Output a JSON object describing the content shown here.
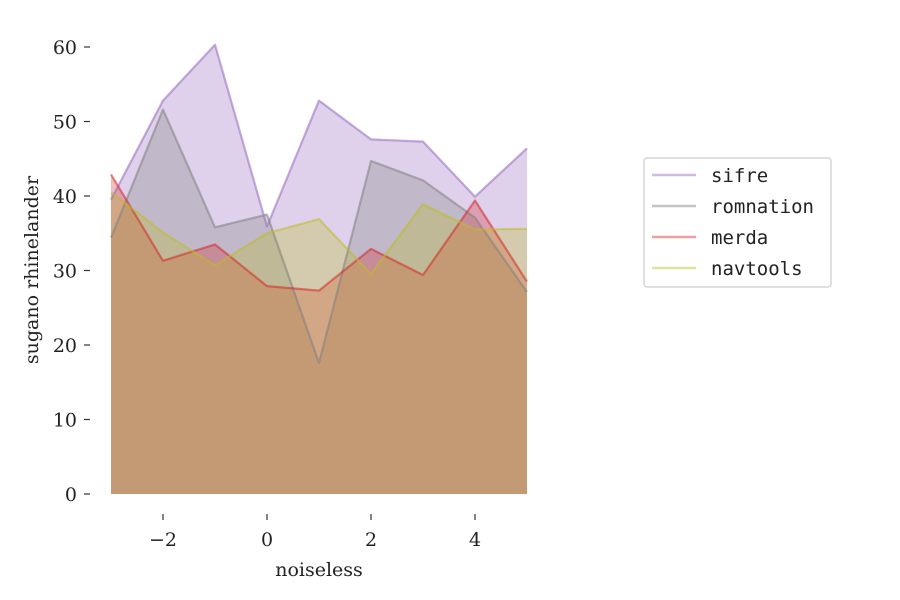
{
  "chart_data": {
    "type": "area",
    "xlabel": "noiseless",
    "ylabel": "sugano rhinelander",
    "xlim": [
      -3,
      5
    ],
    "ylim": [
      0,
      60
    ],
    "x": [
      -3,
      -2,
      -1,
      0,
      1,
      2,
      3,
      4,
      5
    ],
    "x_ticks": [
      -2,
      0,
      2,
      4
    ],
    "x_tick_labels": [
      "−2",
      "0",
      "2",
      "4"
    ],
    "y_ticks": [
      0,
      10,
      20,
      30,
      40,
      50,
      60
    ],
    "y_tick_labels": [
      "0",
      "10",
      "20",
      "30",
      "40",
      "50",
      "60"
    ],
    "grid": false,
    "legend_position": "right",
    "stacked": false,
    "series": [
      {
        "name": "sifre",
        "color": "#9467bd",
        "values": [
          39.5,
          52.8,
          60.3,
          35.9,
          52.8,
          47.6,
          47.3,
          39.9,
          46.4
        ]
      },
      {
        "name": "romnation",
        "color": "#7f7f7f",
        "values": [
          34.4,
          51.6,
          35.8,
          37.5,
          17.6,
          44.7,
          42.1,
          37.1,
          27.1
        ]
      },
      {
        "name": "merda",
        "color": "#d62728",
        "values": [
          42.9,
          31.3,
          33.5,
          27.9,
          27.3,
          32.9,
          29.4,
          39.4,
          28.5
        ]
      },
      {
        "name": "navtools",
        "color": "#bcbd22",
        "values": [
          40.5,
          35.1,
          30.7,
          35.0,
          36.9,
          29.5,
          38.9,
          35.5,
          35.6
        ]
      }
    ]
  }
}
